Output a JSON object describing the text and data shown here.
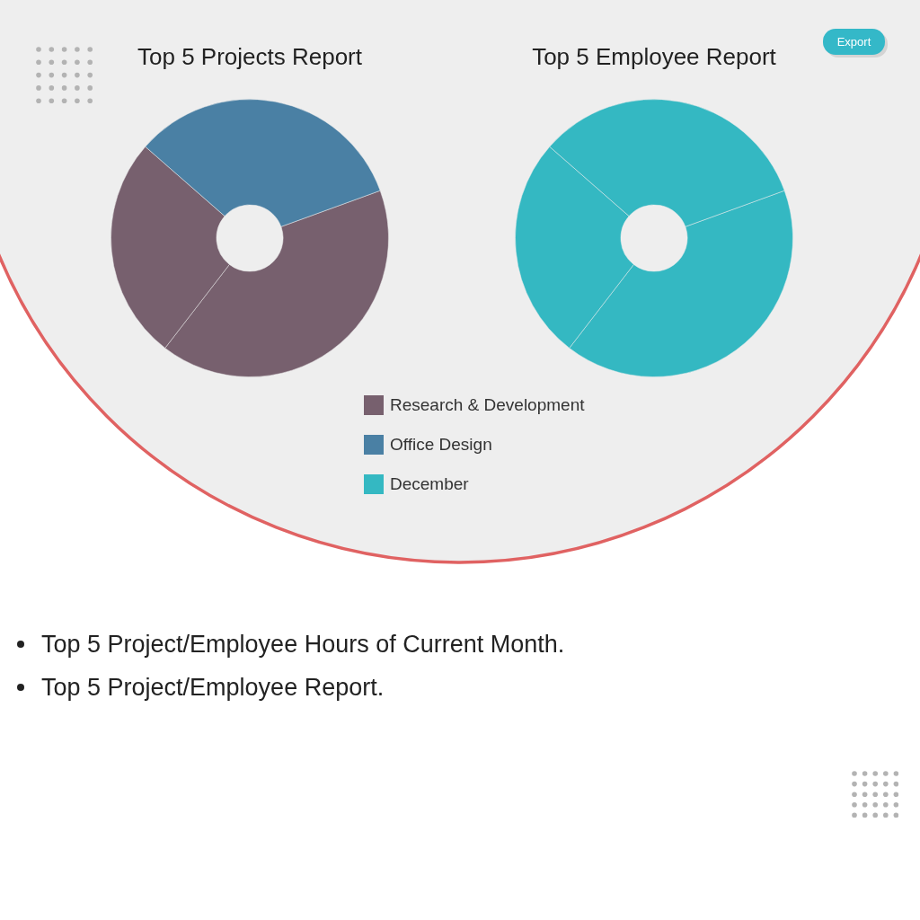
{
  "chart_data": [
    {
      "type": "donut",
      "title": "Top 5 Projects Report",
      "categories": [
        "Research & Development",
        null,
        "Office Design"
      ],
      "values": [
        41,
        26,
        33
      ],
      "colors": [
        "#77606e",
        "#77606e",
        "#4a80a4"
      ],
      "legend": "bottom",
      "annotations": [
        "Top 5 Project/Employee Hours of Current Month.",
        "Top 5 Project/Employee Report."
      ]
    },
    {
      "type": "donut",
      "title": "Top 5 Employee Report",
      "categories": [
        "December",
        null,
        null
      ],
      "values": [
        41,
        26,
        33
      ],
      "colors": [
        "#34b8c2",
        "#34b8c2",
        "#34b8c2"
      ],
      "legend": "bottom",
      "annotations": [
        "Export"
      ]
    }
  ]
}
